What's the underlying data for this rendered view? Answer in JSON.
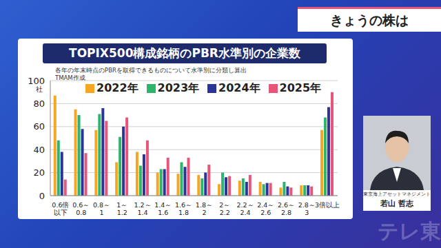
{
  "chart_data": {
    "type": "bar",
    "title": "TOPIX500構成銘柄のPBR水準別の企業数",
    "subtitle": "各年の年末時点のPBRを取得できるものについて水準別に分類し算出",
    "annotations": [
      "TMAM作成"
    ],
    "y_label": "社",
    "categories": [
      "0.6倍以下",
      "0.6～0.8",
      "0.8～1",
      "1～1.2",
      "1.2～1.4",
      "1.4～1.6",
      "1.6～1.8",
      "1.8～2",
      "2～2.2",
      "2.2～2.4",
      "2.4～2.6",
      "2.6～2.8",
      "2.8～3",
      "3倍以上"
    ],
    "series": [
      {
        "name": "2022年",
        "color": "#f5a623",
        "values": [
          87,
          75,
          57,
          29,
          38,
          20,
          19,
          18,
          10,
          13,
          12,
          7,
          9,
          57
        ]
      },
      {
        "name": "2023年",
        "color": "#2fb46c",
        "values": [
          48,
          70,
          71,
          51,
          26,
          23,
          29,
          15,
          20,
          15,
          10,
          12,
          9,
          68
        ]
      },
      {
        "name": "2024年",
        "color": "#2a3597",
        "values": [
          38,
          58,
          76,
          60,
          36,
          23,
          25,
          20,
          16,
          12,
          11,
          8,
          9,
          77
        ]
      },
      {
        "name": "2025年",
        "color": "#e8557a",
        "values": [
          14,
          37,
          65,
          68,
          48,
          33,
          33,
          27,
          17,
          18,
          11,
          7,
          8,
          90
        ]
      }
    ],
    "ylim": [
      0,
      100
    ],
    "yticks": [
      0,
      20,
      40,
      60,
      80,
      100
    ],
    "grid": true,
    "legend": "top",
    "data_labels": false
  },
  "screen": {
    "banner": "きょうの株は",
    "guest": {
      "company": "東京海上アセットマネジメント",
      "name": "若山 哲志"
    },
    "watermark": "テレ東"
  }
}
